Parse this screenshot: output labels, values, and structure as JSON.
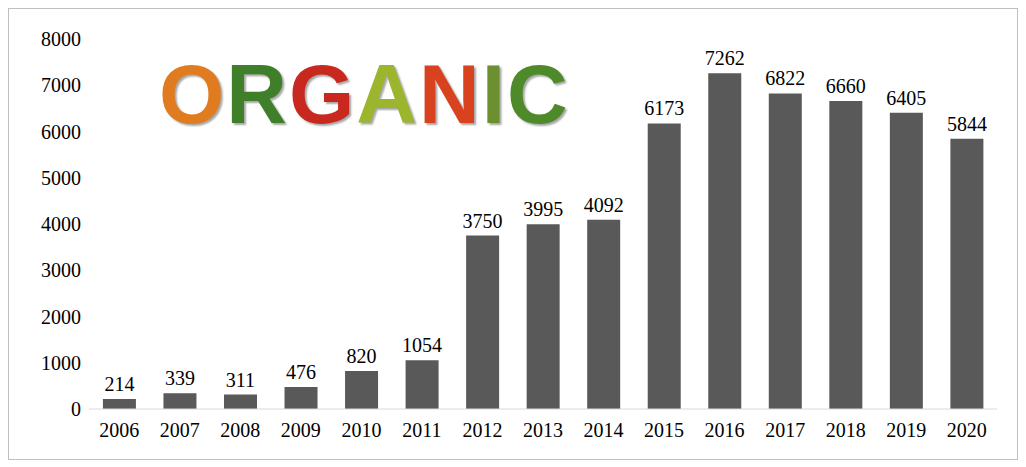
{
  "chart_data": {
    "type": "bar",
    "annotations": [
      "ORGANIC"
    ],
    "categories": [
      "2006",
      "2007",
      "2008",
      "2009",
      "2010",
      "2011",
      "2012",
      "2013",
      "2014",
      "2015",
      "2016",
      "2017",
      "2018",
      "2019",
      "2020"
    ],
    "values": [
      214,
      339,
      311,
      476,
      820,
      1054,
      3750,
      3995,
      4092,
      6173,
      7262,
      6822,
      6660,
      6405,
      5844
    ],
    "color": "#595959",
    "ylim": [
      0,
      8000
    ],
    "yticks": [
      0,
      1000,
      2000,
      3000,
      4000,
      5000,
      6000,
      7000,
      8000
    ],
    "grid": false,
    "data_labels": true
  }
}
